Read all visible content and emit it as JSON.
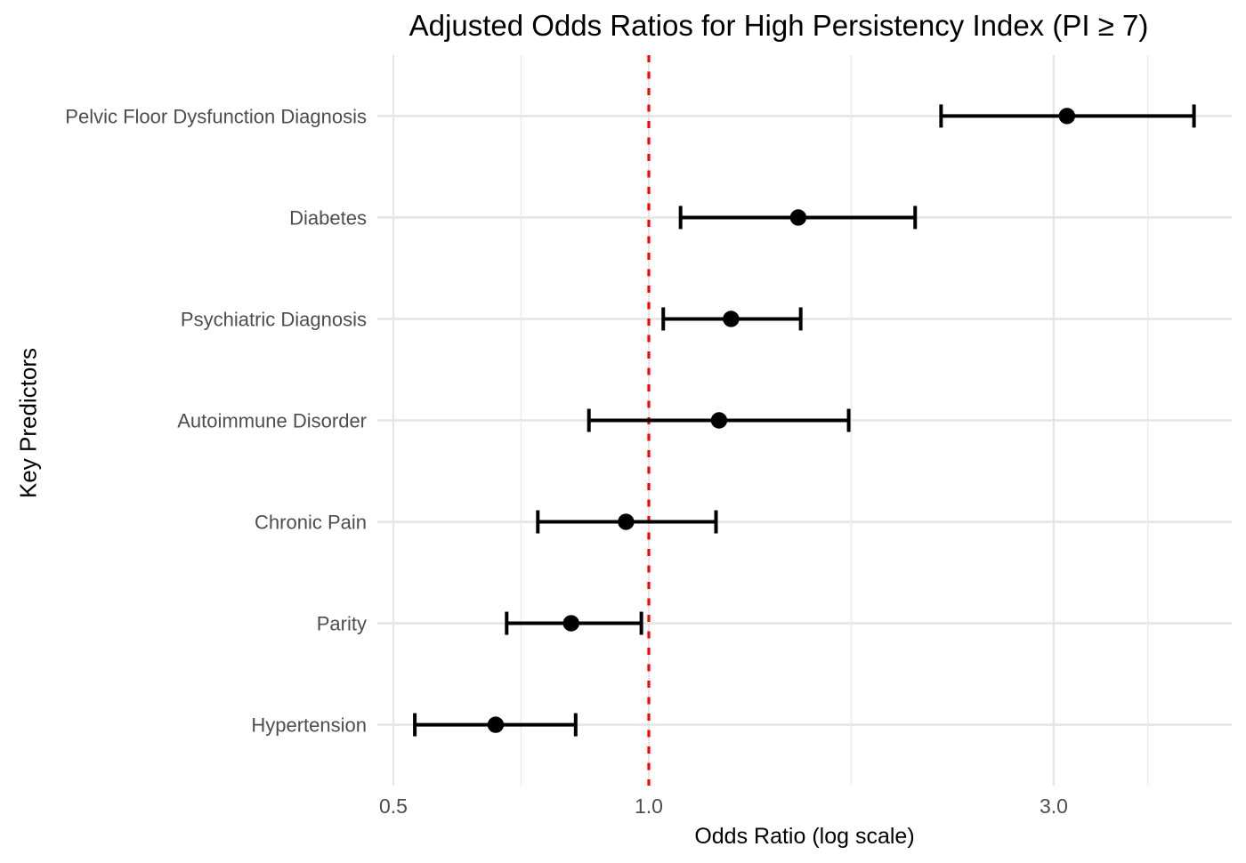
{
  "chart_data": {
    "type": "forest",
    "title": "Adjusted Odds Ratios for High Persistency Index (PI ≥ 7)",
    "xlabel": "Odds Ratio (log scale)",
    "ylabel": "Key Predictors",
    "x_scale": "log10",
    "x_range": [
      0.48,
      4.87
    ],
    "x_ticks": [
      {
        "value": 0.5,
        "label": "0.5"
      },
      {
        "value": 1.0,
        "label": "1.0"
      },
      {
        "value": 3.0,
        "label": "3.0"
      }
    ],
    "x_minor_ticks": [
      0.7071,
      1.7321,
      3.873
    ],
    "reference_line": {
      "x": 1.0,
      "style": "dashed"
    },
    "grid": true,
    "rows": [
      {
        "label": "Pelvic Floor Dysfunction Diagnosis",
        "or": 3.11,
        "ci_low": 2.21,
        "ci_high": 4.39
      },
      {
        "label": "Diabetes",
        "or": 1.5,
        "ci_low": 1.09,
        "ci_high": 2.06
      },
      {
        "label": "Psychiatric Diagnosis",
        "or": 1.25,
        "ci_low": 1.04,
        "ci_high": 1.51
      },
      {
        "label": "Autoimmune Disorder",
        "or": 1.21,
        "ci_low": 0.85,
        "ci_high": 1.72
      },
      {
        "label": "Chronic Pain",
        "or": 0.94,
        "ci_low": 0.74,
        "ci_high": 1.2
      },
      {
        "label": "Parity",
        "or": 0.81,
        "ci_low": 0.68,
        "ci_high": 0.98
      },
      {
        "label": "Hypertension",
        "or": 0.66,
        "ci_low": 0.53,
        "ci_high": 0.82
      }
    ],
    "colors": {
      "reference_line": "#FF0000",
      "point": "#000000",
      "error_bar": "#000000",
      "grid_major": "#E5E5E5",
      "grid_minor": "#ECECEC",
      "axis_text": "#4D4D4D",
      "title_text": "#000000"
    }
  }
}
